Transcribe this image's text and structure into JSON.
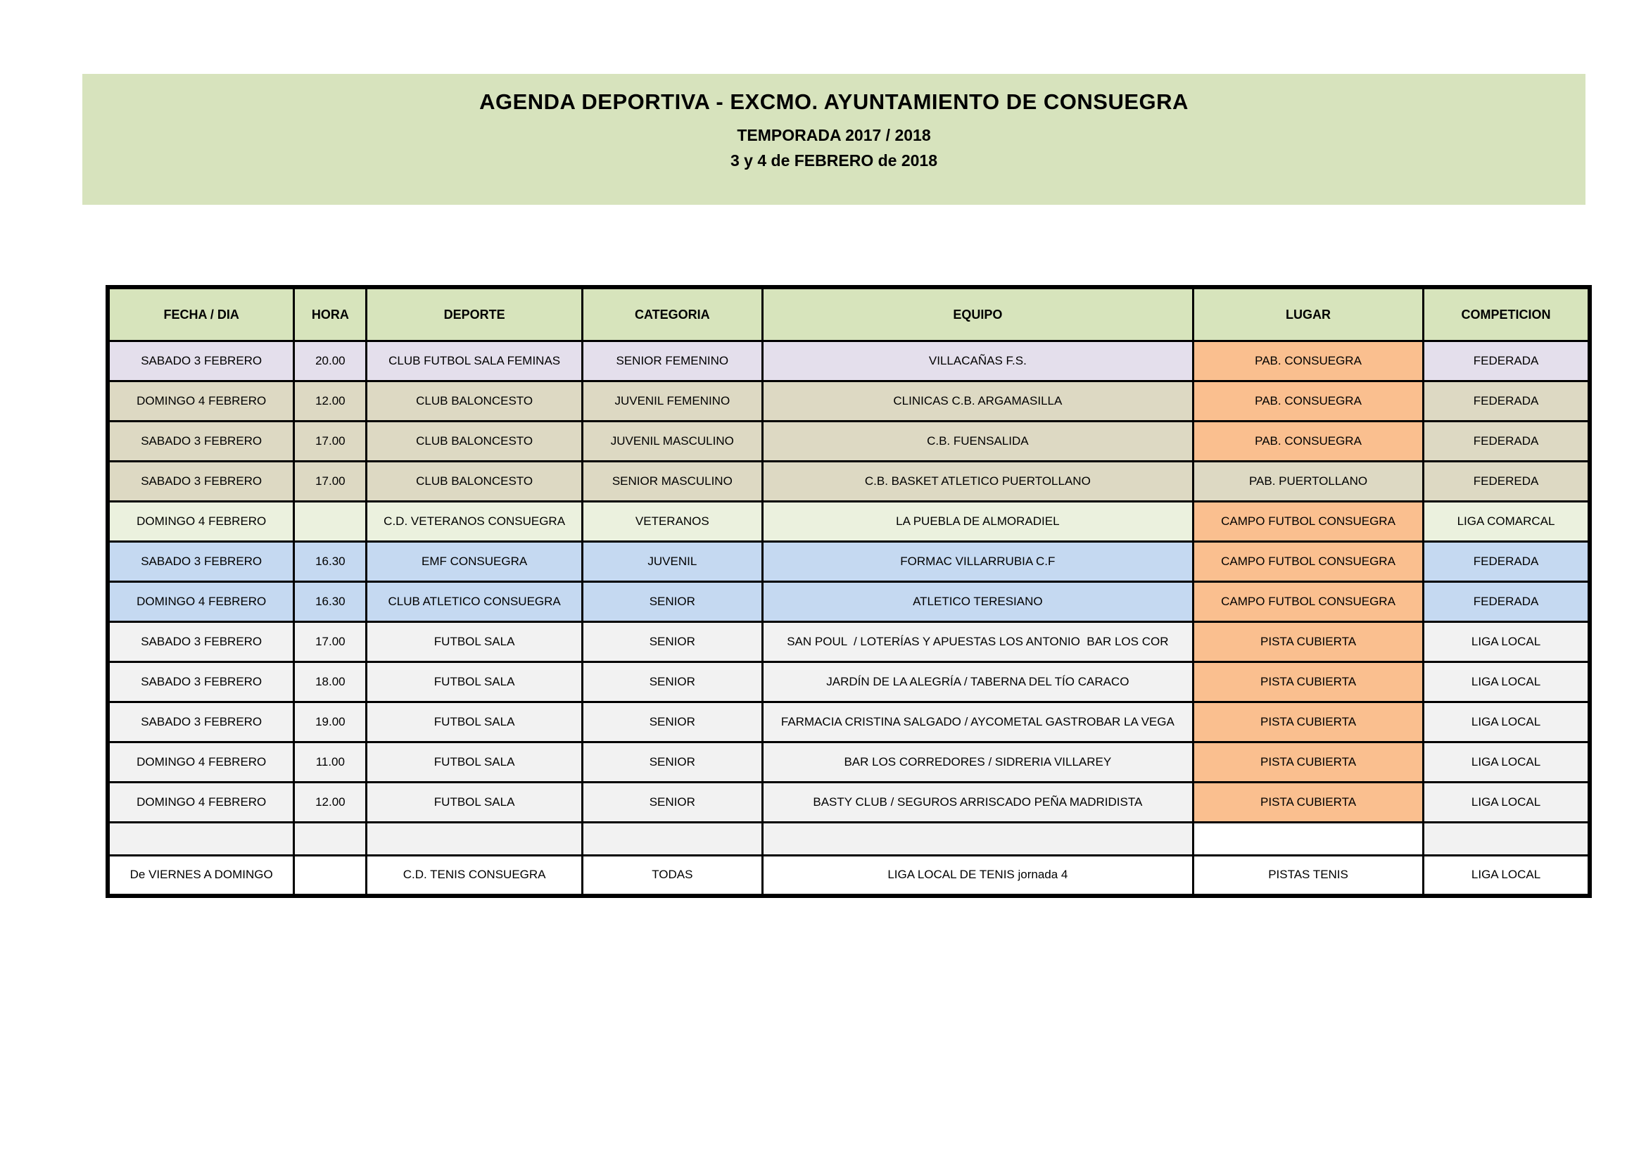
{
  "banner": {
    "title": "AGENDA DEPORTIVA - EXCMO. AYUNTAMIENTO DE CONSUEGRA",
    "season": "TEMPORADA 2017 / 2018",
    "dates": "3 y 4 de FEBRERO de 2018"
  },
  "colors": {
    "banner_bg": "#d7e3bd",
    "header_bg": "#d7e4bc",
    "row_lavender": "#e4dfec",
    "row_beige": "#ddd9c3",
    "row_pale_green": "#ebf1de",
    "row_blue": "#c5d9f1",
    "row_gray": "#f2f2f2",
    "lugar_orange": "#fabf8f",
    "border_black": "#000000"
  },
  "table": {
    "columns": {
      "fecha": "FECHA / DIA",
      "hora": "HORA",
      "deporte": "DEPORTE",
      "categoria": "CATEGORIA",
      "equipo": "EQUIPO",
      "lugar": "LUGAR",
      "competicion": "COMPETICION"
    },
    "rows": [
      {
        "fecha": "SABADO 3 FEBRERO",
        "hora": "20.00",
        "deporte": "CLUB FUTBOL SALA FEMINAS",
        "categoria": "SENIOR FEMENINO",
        "equipo": "VILLACAÑAS F.S.",
        "lugar": "PAB. CONSUEGRA",
        "competicion": "FEDERADA"
      },
      {
        "fecha": "DOMINGO 4 FEBRERO",
        "hora": "12.00",
        "deporte": "CLUB BALONCESTO",
        "categoria": "JUVENIL FEMENINO",
        "equipo": "CLINICAS C.B. ARGAMASILLA",
        "lugar": "PAB. CONSUEGRA",
        "competicion": "FEDERADA"
      },
      {
        "fecha": "SABADO 3 FEBRERO",
        "hora": "17.00",
        "deporte": "CLUB BALONCESTO",
        "categoria": "JUVENIL MASCULINO",
        "equipo": "C.B. FUENSALIDA",
        "lugar": "PAB. CONSUEGRA",
        "competicion": "FEDERADA"
      },
      {
        "fecha": "SABADO 3 FEBRERO",
        "hora": "17.00",
        "deporte": "CLUB BALONCESTO",
        "categoria": "SENIOR MASCULINO",
        "equipo": "C.B. BASKET ATLETICO PUERTOLLANO",
        "lugar": "PAB. PUERTOLLANO",
        "competicion": "FEDEREDA"
      },
      {
        "fecha": "DOMINGO 4 FEBRERO",
        "hora": "",
        "deporte": "C.D. VETERANOS CONSUEGRA",
        "categoria": "VETERANOS",
        "equipo": "LA PUEBLA DE ALMORADIEL",
        "lugar": "CAMPO FUTBOL CONSUEGRA",
        "competicion": "LIGA COMARCAL"
      },
      {
        "fecha": "SABADO 3 FEBRERO",
        "hora": "16.30",
        "deporte": "EMF CONSUEGRA",
        "categoria": "JUVENIL",
        "equipo": "FORMAC VILLARRUBIA C.F",
        "lugar": "CAMPO FUTBOL CONSUEGRA",
        "competicion": "FEDERADA"
      },
      {
        "fecha": "DOMINGO 4 FEBRERO",
        "hora": "16.30",
        "deporte": "CLUB ATLETICO CONSUEGRA",
        "categoria": "SENIOR",
        "equipo": "ATLETICO TERESIANO",
        "lugar": "CAMPO FUTBOL CONSUEGRA",
        "competicion": "FEDERADA"
      },
      {
        "fecha": "SABADO 3 FEBRERO",
        "hora": "17.00",
        "deporte": "FUTBOL SALA",
        "categoria": "SENIOR",
        "equipo": "SAN POUL  / LOTERÍAS Y APUESTAS LOS ANTONIO  BAR LOS COR",
        "lugar": "PISTA CUBIERTA",
        "competicion": "LIGA LOCAL"
      },
      {
        "fecha": "SABADO 3 FEBRERO",
        "hora": "18.00",
        "deporte": "FUTBOL SALA",
        "categoria": "SENIOR",
        "equipo": "JARDÍN DE LA ALEGRÍA / TABERNA DEL TÍO CARACO",
        "lugar": "PISTA CUBIERTA",
        "competicion": "LIGA LOCAL"
      },
      {
        "fecha": "SABADO 3 FEBRERO",
        "hora": "19.00",
        "deporte": "FUTBOL SALA",
        "categoria": "SENIOR",
        "equipo": "FARMACIA CRISTINA SALGADO  /  AYCOMETAL GASTROBAR LA VEGA",
        "lugar": "PISTA CUBIERTA",
        "competicion": "LIGA LOCAL"
      },
      {
        "fecha": "DOMINGO 4 FEBRERO",
        "hora": "11.00",
        "deporte": "FUTBOL SALA",
        "categoria": "SENIOR",
        "equipo": "BAR LOS CORREDORES / SIDRERIA VILLAREY",
        "lugar": "PISTA CUBIERTA",
        "competicion": "LIGA LOCAL"
      },
      {
        "fecha": "DOMINGO 4 FEBRERO",
        "hora": "12.00",
        "deporte": "FUTBOL SALA",
        "categoria": "SENIOR",
        "equipo": "BASTY CLUB / SEGUROS ARRISCADO PEÑA MADRIDISTA",
        "lugar": "PISTA CUBIERTA",
        "competicion": "LIGA LOCAL"
      },
      {
        "fecha": "",
        "hora": "",
        "deporte": "",
        "categoria": "",
        "equipo": "",
        "lugar": "",
        "competicion": ""
      },
      {
        "fecha": "De VIERNES A DOMINGO",
        "hora": "",
        "deporte": "C.D. TENIS CONSUEGRA",
        "categoria": "TODAS",
        "equipo": "LIGA LOCAL DE TENIS jornada 4",
        "lugar": "PISTAS TENIS",
        "competicion": "LIGA LOCAL"
      }
    ]
  }
}
